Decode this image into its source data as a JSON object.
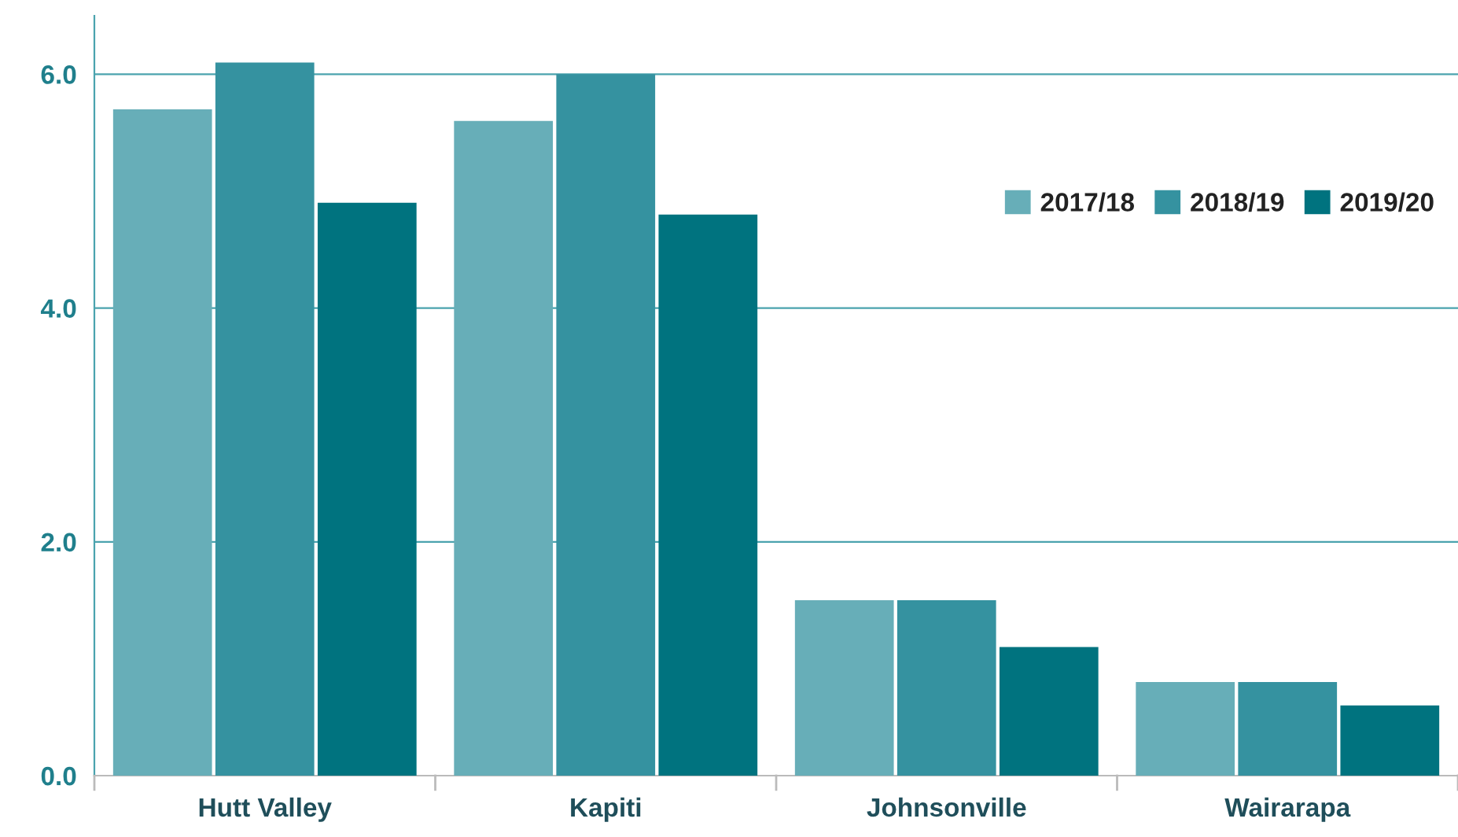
{
  "chart_data": {
    "type": "bar",
    "categories": [
      "Hutt Valley",
      "Kapiti",
      "Johnsonville",
      "Wairarapa"
    ],
    "series": [
      {
        "name": "2017/18",
        "color": "#67aeb8",
        "values": [
          5.7,
          5.6,
          1.5,
          0.8
        ]
      },
      {
        "name": "2018/19",
        "color": "#3592a0",
        "values": [
          6.1,
          6.0,
          1.5,
          0.8
        ]
      },
      {
        "name": "2019/20",
        "color": "#00737f",
        "values": [
          4.9,
          4.8,
          1.1,
          0.6
        ]
      }
    ],
    "ylim": [
      0,
      6.5
    ],
    "yticks": [
      {
        "value": 0,
        "label": "0.0"
      },
      {
        "value": 2,
        "label": "2.0"
      },
      {
        "value": 4,
        "label": "4.0"
      },
      {
        "value": 6,
        "label": "6.0"
      }
    ],
    "grid": "y",
    "legend": "top right"
  }
}
